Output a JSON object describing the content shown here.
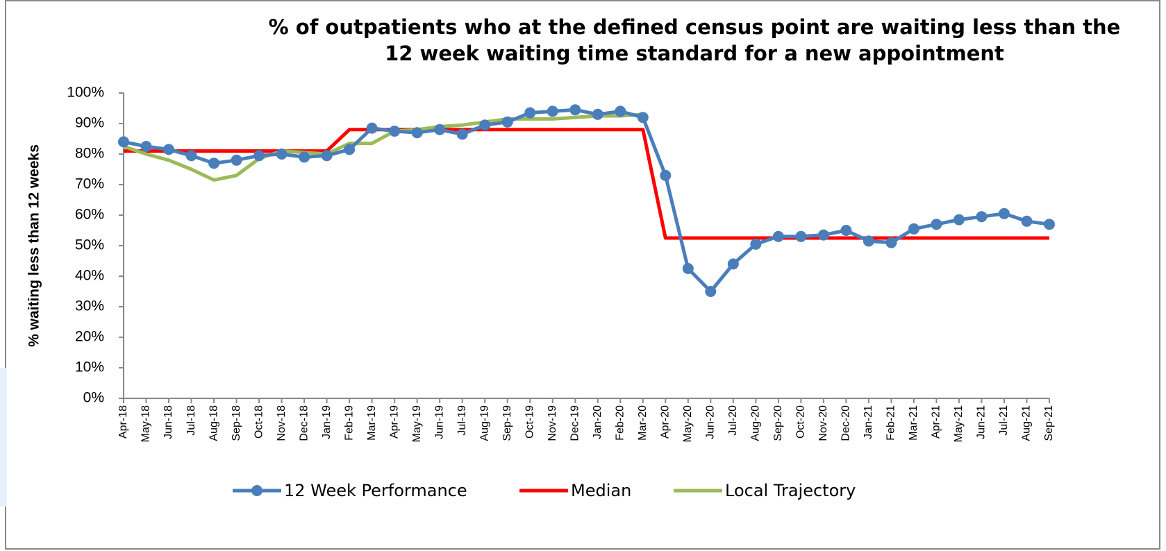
{
  "chart_data": {
    "type": "line",
    "title": [
      "% of outpatients who at the defined census point are waiting less than the",
      "12 week waiting time standard for a new appointment"
    ],
    "y_label": "% waiting less than 12 weeks",
    "categories": [
      "Apr-18",
      "May-18",
      "Jun-18",
      "Jul-18",
      "Aug-18",
      "Sep-18",
      "Oct-18",
      "Nov-18",
      "Dec-18",
      "Jan-19",
      "Feb-19",
      "Mar-19",
      "Apr-19",
      "May-19",
      "Jun-19",
      "Jul-19",
      "Aug-19",
      "Sep-19",
      "Oct-19",
      "Nov-19",
      "Dec-19",
      "Jan-20",
      "Feb-20",
      "Mar-20",
      "Apr-20",
      "May-20",
      "Jun-20",
      "Jul-20",
      "Aug-20",
      "Sep-20",
      "Oct-20",
      "Nov-20",
      "Dec-20",
      "Jan-21",
      "Feb-21",
      "Mar-21",
      "Apr-21",
      "May-21",
      "Jun-21",
      "Jul-21",
      "Aug-21",
      "Sep-21"
    ],
    "series": [
      {
        "name": "12 Week Performance",
        "color": "#4a7ebb",
        "marker": true,
        "values": [
          84,
          82.5,
          81.5,
          79.5,
          77,
          78,
          79.5,
          80,
          79,
          79.5,
          81.5,
          88.5,
          87.5,
          87,
          88,
          86.5,
          89.5,
          90.5,
          93.5,
          94,
          94.5,
          93,
          94,
          92,
          73,
          42.5,
          35,
          44,
          50.5,
          53,
          53,
          53.5,
          55,
          51.5,
          51,
          55.5,
          57,
          58.5,
          59.5,
          60.5,
          58,
          57
        ]
      },
      {
        "name": "Median",
        "color": "#ff0000",
        "marker": false,
        "values": [
          81,
          81,
          81,
          81,
          81,
          81,
          81,
          81,
          81,
          81,
          88,
          88,
          88,
          88,
          88,
          88,
          88,
          88,
          88,
          88,
          88,
          88,
          88,
          88,
          52.5,
          52.5,
          52.5,
          52.5,
          52.5,
          52.5,
          52.5,
          52.5,
          52.5,
          52.5,
          52.5,
          52.5,
          52.5,
          52.5,
          52.5,
          52.5,
          52.5,
          52.5
        ]
      },
      {
        "name": "Local Trajectory",
        "color": "#9bbb59",
        "marker": false,
        "values": [
          82.5,
          80,
          78,
          75,
          71.5,
          73,
          78.5,
          81,
          80.5,
          80,
          83.5,
          83.5,
          87.5,
          88,
          89,
          89.5,
          90.5,
          91.5,
          91.5,
          91.5,
          92,
          92.5,
          92.5,
          93,
          null,
          null,
          null,
          null,
          null,
          null,
          null,
          null,
          null,
          null,
          null,
          null,
          null,
          null,
          null,
          null,
          null,
          null
        ]
      }
    ],
    "ylim": [
      0,
      100
    ],
    "yticks": [
      {
        "value": 0,
        "label": "0%"
      },
      {
        "value": 10,
        "label": "10%"
      },
      {
        "value": 20,
        "label": "20%"
      },
      {
        "value": 30,
        "label": "30%"
      },
      {
        "value": 40,
        "label": "40%"
      },
      {
        "value": 50,
        "label": "50%"
      },
      {
        "value": 60,
        "label": "60%"
      },
      {
        "value": 70,
        "label": "70%"
      },
      {
        "value": 80,
        "label": "80%"
      },
      {
        "value": 90,
        "label": "90%"
      },
      {
        "value": 100,
        "label": "100%"
      }
    ],
    "grid": false,
    "legend": "bottom"
  }
}
